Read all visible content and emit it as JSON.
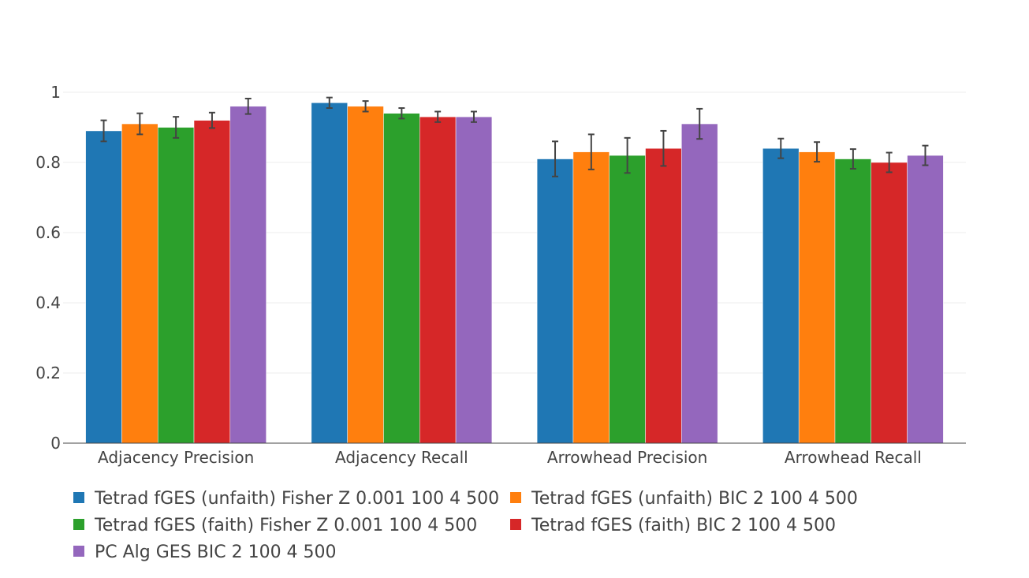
{
  "chart_data": {
    "type": "bar",
    "title": "",
    "xlabel": "",
    "ylabel": "",
    "ylim": [
      0,
      1
    ],
    "yticks": [
      0,
      0.2,
      0.4,
      0.6,
      0.8,
      1
    ],
    "ytick_labels": [
      "0",
      "0.2",
      "0.4",
      "0.6",
      "0.8",
      "1"
    ],
    "grid": true,
    "categories": [
      "Adjacency Precision",
      "Adjacency Recall",
      "Arrowhead Precision",
      "Arrowhead Recall"
    ],
    "series": [
      {
        "name": "Tetrad fGES (unfaith) Fisher Z 0.001 100 4 500",
        "color": "#1f77b4",
        "values": [
          0.89,
          0.97,
          0.81,
          0.84
        ],
        "error": [
          0.03,
          0.015,
          0.05,
          0.028
        ]
      },
      {
        "name": "Tetrad fGES (unfaith) BIC 2 100 4 500",
        "color": "#ff7f0e",
        "values": [
          0.91,
          0.96,
          0.83,
          0.83
        ],
        "error": [
          0.03,
          0.015,
          0.05,
          0.028
        ]
      },
      {
        "name": "Tetrad fGES (faith) Fisher Z 0.001 100 4 500",
        "color": "#2ca02c",
        "values": [
          0.9,
          0.94,
          0.82,
          0.81
        ],
        "error": [
          0.03,
          0.015,
          0.05,
          0.028
        ]
      },
      {
        "name": "Tetrad fGES (faith) BIC 2 100 4 500",
        "color": "#d62728",
        "values": [
          0.92,
          0.93,
          0.84,
          0.8
        ],
        "error": [
          0.022,
          0.015,
          0.05,
          0.028
        ]
      },
      {
        "name": "PC Alg GES BIC 2 100 4 500",
        "color": "#9467bd",
        "values": [
          0.96,
          0.93,
          0.91,
          0.82
        ],
        "error": [
          0.022,
          0.015,
          0.043,
          0.028
        ]
      }
    ],
    "legend_position": "bottom-left"
  }
}
